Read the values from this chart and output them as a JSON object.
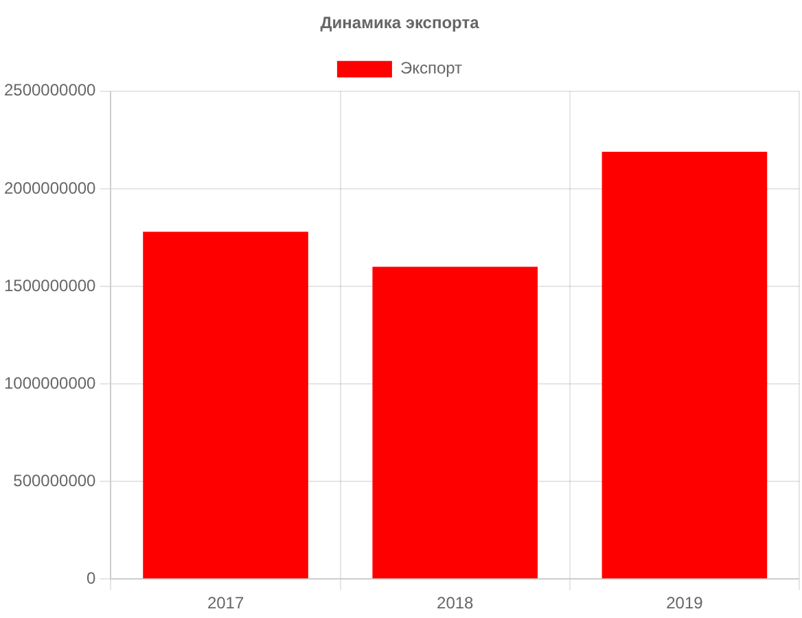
{
  "chart_data": {
    "type": "bar",
    "title": "Динамика экспорта",
    "categories": [
      "2017",
      "2018",
      "2019"
    ],
    "series": [
      {
        "name": "Экспорт",
        "color": "#ff0000",
        "values": [
          1780000000,
          1600000000,
          2190000000
        ]
      }
    ],
    "ylim": [
      0,
      2500000000
    ],
    "yticks": [
      0,
      500000000,
      1000000000,
      1500000000,
      2000000000,
      2500000000
    ],
    "grid": true,
    "legend": "top"
  }
}
